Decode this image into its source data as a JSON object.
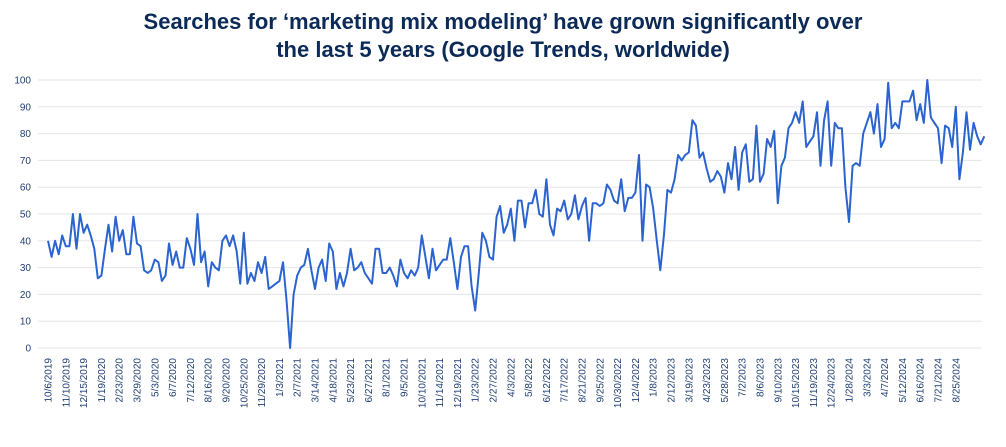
{
  "chart_data": {
    "type": "line",
    "title": "Searches for ‘marketing mix modeling’ have grown significantly over the last 5 years (Google Trends, worldwide)",
    "title_lines": [
      "Searches for ‘marketing mix modeling’ have grown significantly over",
      "the last 5 years (Google Trends, worldwide)"
    ],
    "xlabel": "",
    "ylabel": "",
    "ylim": [
      0,
      100
    ],
    "yticks": [
      0,
      10,
      20,
      30,
      40,
      50,
      60,
      70,
      80,
      90,
      100
    ],
    "grid": true,
    "line_color": "#2b64cf",
    "x_tick_labels": [
      "10/6/2019",
      "11/10/2019",
      "12/15/2019",
      "1/19/2020",
      "2/23/2020",
      "3/29/2020",
      "5/3/2020",
      "6/7/2020",
      "7/12/2020",
      "8/16/2020",
      "9/20/2020",
      "10/25/2020",
      "11/29/2020",
      "1/3/2021",
      "2/7/2021",
      "3/14/2021",
      "4/18/2021",
      "5/23/2021",
      "6/27/2021",
      "8/1/2021",
      "9/5/2021",
      "10/10/2021",
      "11/14/2021",
      "12/19/2021",
      "1/23/2022",
      "2/27/2022",
      "4/3/2022",
      "5/8/2022",
      "6/12/2022",
      "7/17/2022",
      "8/21/2022",
      "9/25/2022",
      "10/30/2022",
      "12/4/2022",
      "1/8/2023",
      "2/12/2023",
      "3/19/2023",
      "4/23/2023",
      "5/28/2023",
      "7/2/2023",
      "8/6/2023",
      "9/10/2023",
      "10/15/2023",
      "11/19/2023",
      "12/24/2023",
      "1/28/2024",
      "3/3/2024",
      "4/7/2024",
      "5/12/2024",
      "6/16/2024",
      "7/21/2024",
      "8/25/2024"
    ],
    "values": [
      40,
      34,
      40,
      35,
      42,
      38,
      38,
      50,
      37,
      50,
      43,
      46,
      42,
      37,
      26,
      27,
      37,
      46,
      36,
      49,
      40,
      44,
      35,
      35,
      49,
      39,
      38,
      29,
      28,
      29,
      33,
      32,
      25,
      27,
      39,
      31,
      36,
      30,
      30,
      41,
      37,
      31,
      50,
      32,
      36,
      23,
      32,
      30,
      29,
      40,
      42,
      38,
      42,
      36,
      24,
      43,
      24,
      28,
      25,
      32,
      28,
      34,
      22,
      23,
      24,
      25,
      32,
      18,
      0,
      20,
      27,
      30,
      31,
      37,
      29,
      22,
      30,
      33,
      25,
      39,
      36,
      22,
      28,
      23,
      28,
      37,
      29,
      30,
      32,
      28,
      26,
      24,
      37,
      37,
      28,
      28,
      30,
      27,
      23,
      33,
      28,
      26,
      29,
      27,
      30,
      42,
      34,
      26,
      37,
      29,
      31,
      33,
      33,
      41,
      32,
      22,
      34,
      38,
      38,
      23,
      14,
      28,
      43,
      40,
      34,
      33,
      49,
      53,
      43,
      46,
      52,
      40,
      55,
      55,
      45,
      54,
      54,
      59,
      50,
      49,
      63,
      46,
      42,
      52,
      51,
      55,
      48,
      50,
      57,
      48,
      53,
      56,
      40,
      54,
      54,
      53,
      54,
      61,
      59,
      55,
      54,
      63,
      51,
      56,
      56,
      58,
      72,
      40,
      61,
      60,
      52,
      40,
      29,
      42,
      59,
      58,
      63,
      72,
      70,
      72,
      73,
      85,
      83,
      71,
      73,
      67,
      62,
      63,
      66,
      64,
      58,
      69,
      63,
      75,
      59,
      73,
      76,
      62,
      63,
      83,
      62,
      65,
      78,
      75,
      81,
      54,
      68,
      71,
      82,
      84,
      88,
      84,
      92,
      75,
      77,
      79,
      88,
      68,
      85,
      92,
      68,
      84,
      82,
      82,
      60,
      47,
      68,
      69,
      68,
      80,
      84,
      88,
      80,
      91,
      75,
      78,
      99,
      82,
      84,
      82,
      92,
      92,
      92,
      96,
      85,
      91,
      84,
      100,
      86,
      84,
      82,
      69,
      83,
      82,
      75,
      90,
      63,
      73,
      88,
      74,
      84,
      79,
      76,
      79
    ]
  }
}
